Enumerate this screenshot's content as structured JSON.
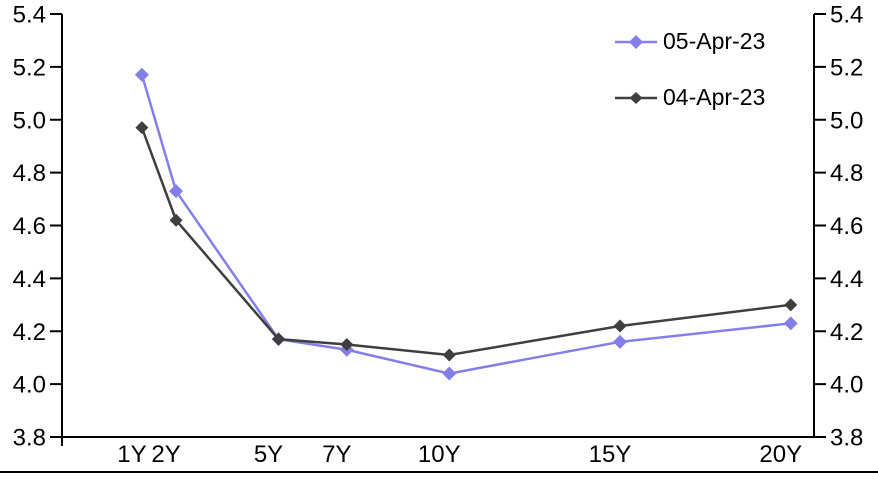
{
  "chart_data": {
    "type": "line",
    "x_tick_labels": [
      "1Y",
      "2Y",
      "5Y",
      "7Y",
      "10Y",
      "15Y",
      "20Y"
    ],
    "x_years": [
      1,
      2,
      5,
      7,
      10,
      15,
      20
    ],
    "series": [
      {
        "name": "05-Apr-23",
        "color": "#8280E8",
        "marker": "diamond",
        "values": [
          5.17,
          4.73,
          4.17,
          4.13,
          4.04,
          4.16,
          4.23
        ]
      },
      {
        "name": "04-Apr-23",
        "color": "#3F3F3F",
        "marker": "diamond",
        "values": [
          4.97,
          4.62,
          4.17,
          4.15,
          4.11,
          4.22,
          4.3
        ]
      }
    ],
    "y_axis": {
      "min": 3.8,
      "max": 5.4,
      "step": 0.2,
      "tick_labels": [
        "3.8",
        "4.0",
        "4.2",
        "4.4",
        "4.6",
        "4.8",
        "5.0",
        "5.2",
        "5.4"
      ],
      "sides": [
        "left",
        "right"
      ]
    },
    "axis_x_range": [
      -1.34,
      20.68
    ],
    "legend_position": "top-right",
    "grid": false,
    "axis_color": "#000000"
  }
}
